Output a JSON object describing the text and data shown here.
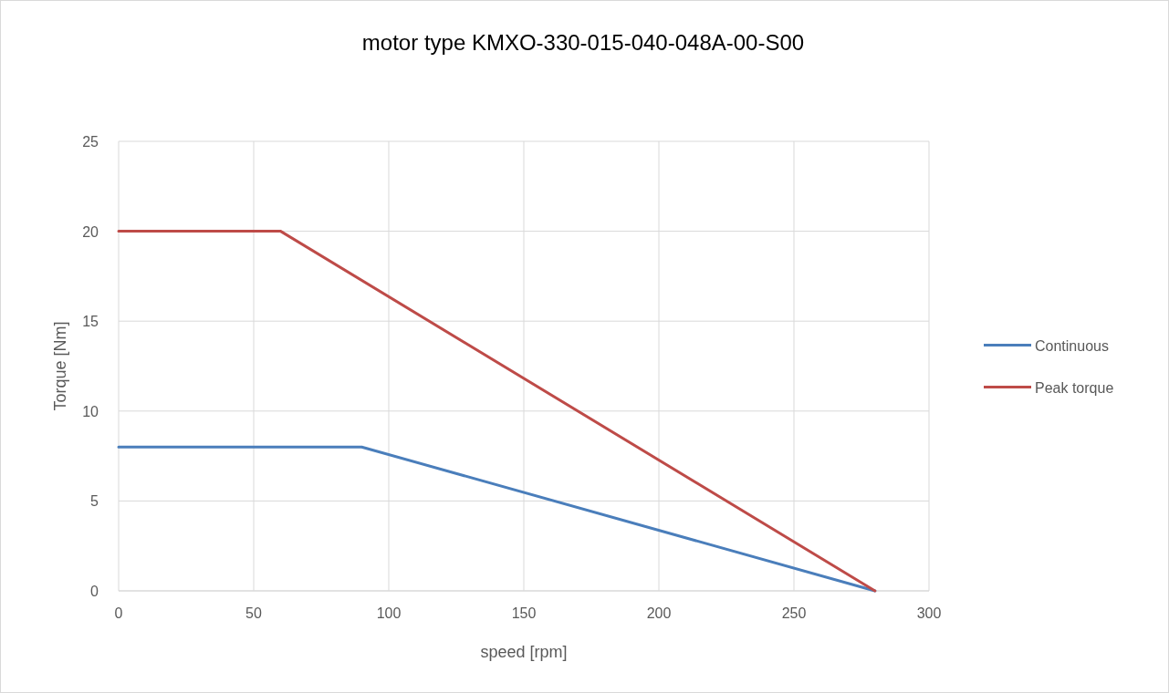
{
  "chart_data": {
    "type": "line",
    "title": "motor type KMXO-330-015-040-048A-00-S00",
    "xlabel": "speed [rpm]",
    "ylabel": "Torque [Nm]",
    "series": [
      {
        "name": "Continuous",
        "color": "#4a7ebb",
        "x": [
          0,
          90,
          280
        ],
        "values": [
          8,
          8,
          0
        ]
      },
      {
        "name": "Peak torque",
        "color": "#be4b48",
        "x": [
          0,
          60,
          280
        ],
        "values": [
          20,
          20,
          0
        ]
      }
    ],
    "xlim": [
      0,
      300
    ],
    "xticks": [
      0,
      50,
      100,
      150,
      200,
      250,
      300
    ],
    "ylim": [
      0,
      25
    ],
    "yticks": [
      0,
      5,
      10,
      15,
      20,
      25
    ],
    "grid": true,
    "legend": "right",
    "marker": "none",
    "line_style": "solid"
  }
}
